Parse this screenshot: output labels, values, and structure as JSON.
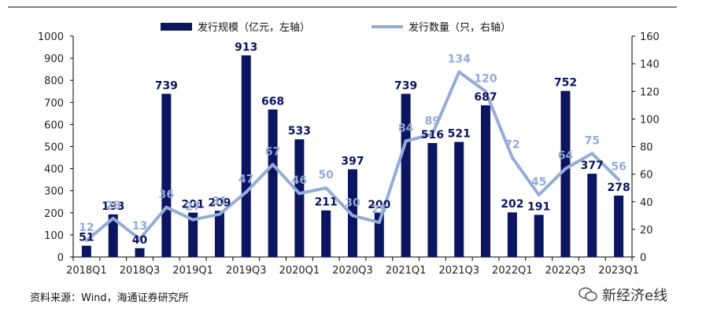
{
  "chart_data": {
    "type": "bar+line",
    "categories": [
      "2018Q1",
      "2018Q2",
      "2018Q3",
      "2018Q4",
      "2019Q1",
      "2019Q2",
      "2019Q3",
      "2019Q4",
      "2020Q1",
      "2020Q2",
      "2020Q3",
      "2020Q4",
      "2021Q1",
      "2021Q2",
      "2021Q3",
      "2021Q4",
      "2022Q1",
      "2022Q2",
      "2022Q3",
      "2022Q4",
      "2023Q1"
    ],
    "x_tick_labels": [
      "2018Q1",
      "2018Q3",
      "2019Q1",
      "2019Q3",
      "2020Q1",
      "2020Q3",
      "2021Q1",
      "2021Q3",
      "2022Q1",
      "2022Q3",
      "2023Q1"
    ],
    "series": [
      {
        "name": "发行规模（亿元，左轴）",
        "type": "bar",
        "axis": "left",
        "values": [
          51,
          193,
          40,
          739,
          201,
          209,
          913,
          668,
          533,
          211,
          397,
          200,
          739,
          516,
          521,
          687,
          202,
          191,
          752,
          377,
          278
        ]
      },
      {
        "name": "发行数量（只，右轴）",
        "type": "line",
        "axis": "right",
        "values": [
          12,
          28,
          13,
          36,
          27,
          31,
          47,
          67,
          46,
          50,
          30,
          25,
          84,
          89,
          134,
          120,
          72,
          45,
          64,
          75,
          56
        ]
      }
    ],
    "left_axis": {
      "min": 0,
      "max": 1000,
      "ticks": [
        0,
        100,
        200,
        300,
        400,
        500,
        600,
        700,
        800,
        900,
        1000
      ]
    },
    "right_axis": {
      "min": 0,
      "max": 160,
      "ticks": [
        0,
        20,
        40,
        60,
        80,
        100,
        120,
        140,
        160
      ]
    },
    "legend_placement": "top-center",
    "colors": {
      "bar": "#0b1560",
      "line": "#93acd8"
    }
  },
  "source_text": "资料来源：Wind，海通证券研究所",
  "watermark_text": "新经济e线"
}
